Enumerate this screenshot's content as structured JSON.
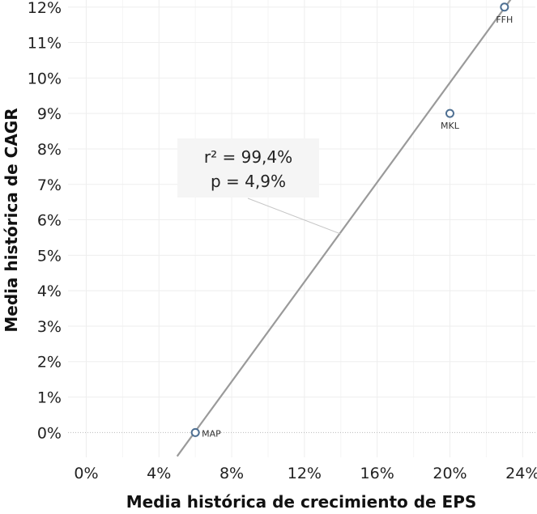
{
  "chart_data": {
    "type": "scatter",
    "title": "",
    "xlabel": "Media histórica de crecimiento de EPS",
    "ylabel": "Media histórica de CAGR",
    "xlim": [
      -0.01,
      0.247
    ],
    "ylim": [
      -0.007,
      0.122
    ],
    "x_ticks": [
      0,
      0.04,
      0.08,
      0.12,
      0.16,
      0.2,
      0.24
    ],
    "x_tick_labels": [
      "0%",
      "4%",
      "8%",
      "12%",
      "16%",
      "20%",
      "24%"
    ],
    "y_ticks": [
      0,
      0.01,
      0.02,
      0.03,
      0.04,
      0.05,
      0.06,
      0.07,
      0.08,
      0.09,
      0.1,
      0.11,
      0.12
    ],
    "y_tick_labels": [
      "0%",
      "1%",
      "2%",
      "3%",
      "4%",
      "5%",
      "6%",
      "7%",
      "8%",
      "9%",
      "10%",
      "11%",
      "12%"
    ],
    "points": [
      {
        "label": "MAP",
        "x": 0.06,
        "y": 0.0
      },
      {
        "label": "MKL",
        "x": 0.2,
        "y": 0.09
      },
      {
        "label": "FFH",
        "x": 0.23,
        "y": 0.12
      }
    ],
    "trendline": {
      "x": [
        0.05,
        0.2339
      ],
      "y": [
        -0.0067,
        0.1225
      ]
    },
    "grid": true,
    "legend": "none",
    "annotation": {
      "lines": [
        "r² = 99,4%",
        "p = 4,9%"
      ],
      "anchor": {
        "x": 0.14,
        "y": 0.056
      }
    },
    "colors": {
      "point_stroke": "#4e6f92",
      "trendline": "#9a9a9a",
      "grid": "#eeeeee",
      "zero_line": "#b9b9b9",
      "annotation_bg": "#f5f5f5",
      "leader": "#c6c6c6"
    }
  }
}
